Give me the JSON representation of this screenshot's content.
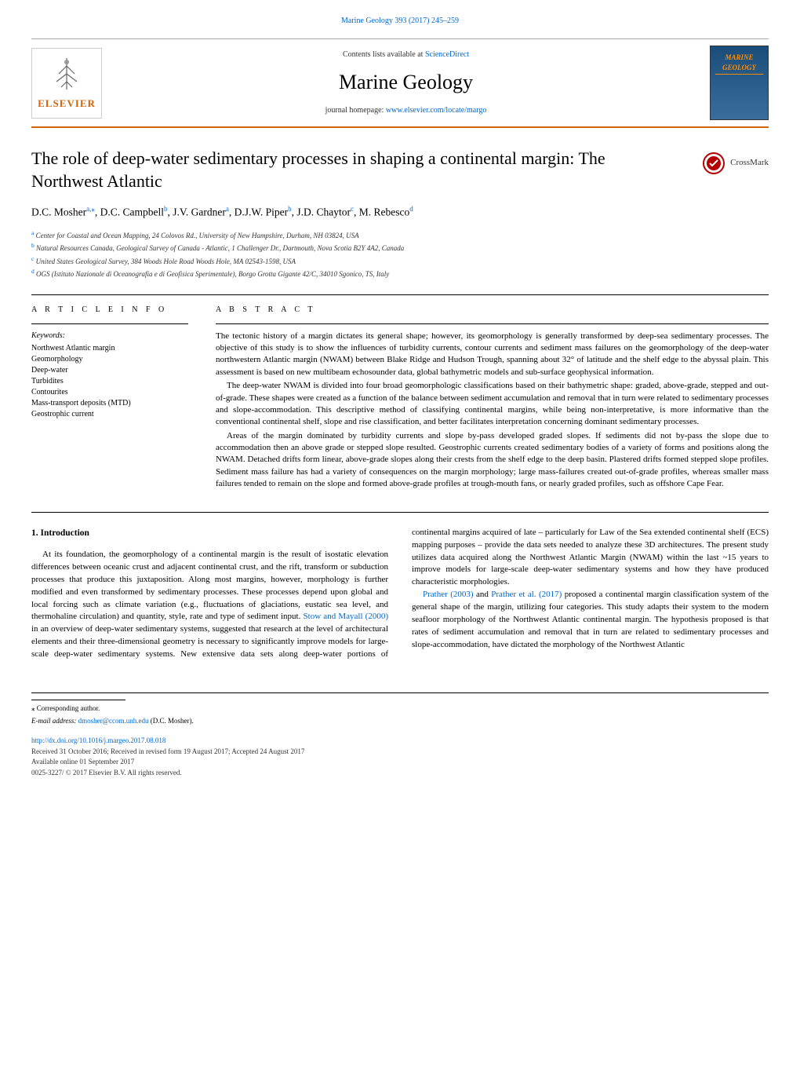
{
  "header": {
    "citation": "Marine Geology 393 (2017) 245–259",
    "contents_text": "Contents lists available at ",
    "contents_link": "ScienceDirect",
    "journal_name": "Marine Geology",
    "homepage_text": "journal homepage: ",
    "homepage_link": "www.elsevier.com/locate/margo",
    "publisher": "ELSEVIER",
    "cover_text": "MARINE GEOLOGY"
  },
  "article": {
    "title": "The role of deep-water sedimentary processes in shaping a continental margin: The Northwest Atlantic",
    "crossmark": "CrossMark",
    "authors_html": "D.C. Mosher",
    "authors": [
      {
        "name": "D.C. Mosher",
        "affil": "a,⁎"
      },
      {
        "name": "D.C. Campbell",
        "affil": "b"
      },
      {
        "name": "J.V. Gardner",
        "affil": "a"
      },
      {
        "name": "D.J.W. Piper",
        "affil": "b"
      },
      {
        "name": "J.D. Chaytor",
        "affil": "c"
      },
      {
        "name": "M. Rebesco",
        "affil": "d"
      }
    ],
    "affiliations": [
      {
        "sup": "a",
        "text": "Center for Coastal and Ocean Mapping, 24 Colovos Rd., University of New Hampshire, Durham, NH 03824, USA"
      },
      {
        "sup": "b",
        "text": "Natural Resources Canada, Geological Survey of Canada - Atlantic, 1 Challenger Dr., Dartmouth, Nova Scotia B2Y 4A2, Canada"
      },
      {
        "sup": "c",
        "text": "United States Geological Survey, 384 Woods Hole Road Woods Hole, MA 02543-1598, USA"
      },
      {
        "sup": "d",
        "text": "OGS (Istituto Nazionale di Oceanografia e di Geofisica Sperimentale), Borgo Grotta Gigante 42/C, 34010 Sgonico, TS, Italy"
      }
    ]
  },
  "info": {
    "heading": "A R T I C L E  I N F O",
    "keywords_label": "Keywords:",
    "keywords": [
      "Northwest Atlantic margin",
      "Geomorphology",
      "Deep-water",
      "Turbidites",
      "Contourites",
      "Mass-transport deposits (MTD)",
      "Geostrophic current"
    ]
  },
  "abstract": {
    "heading": "A B S T R A C T",
    "p1": "The tectonic history of a margin dictates its general shape; however, its geomorphology is generally transformed by deep-sea sedimentary processes. The objective of this study is to show the influences of turbidity currents, contour currents and sediment mass failures on the geomorphology of the deep-water northwestern Atlantic margin (NWAM) between Blake Ridge and Hudson Trough, spanning about 32° of latitude and the shelf edge to the abyssal plain. This assessment is based on new multibeam echosounder data, global bathymetric models and sub-surface geophysical information.",
    "p2": "The deep-water NWAM is divided into four broad geomorphologic classifications based on their bathymetric shape: graded, above-grade, stepped and out-of-grade. These shapes were created as a function of the balance between sediment accumulation and removal that in turn were related to sedimentary processes and slope-accommodation. This descriptive method of classifying continental margins, while being non-interpretative, is more informative than the conventional continental shelf, slope and rise classification, and better facilitates interpretation concerning dominant sedimentary processes.",
    "p3": "Areas of the margin dominated by turbidity currents and slope by-pass developed graded slopes. If sediments did not by-pass the slope due to accommodation then an above grade or stepped slope resulted. Geostrophic currents created sedimentary bodies of a variety of forms and positions along the NWAM. Detached drifts form linear, above-grade slopes along their crests from the shelf edge to the deep basin. Plastered drifts formed stepped slope profiles. Sediment mass failure has had a variety of consequences on the margin morphology; large mass-failures created out-of-grade profiles, whereas smaller mass failures tended to remain on the slope and formed above-grade profiles at trough-mouth fans, or nearly graded profiles, such as offshore Cape Fear."
  },
  "body": {
    "heading": "1. Introduction",
    "p1_a": "At its foundation, the geomorphology of a continental margin is the result of isostatic elevation differences between oceanic crust and adjacent continental crust, and the rift, transform or subduction processes that produce this juxtaposition. Along most margins, however, morphology is further modified and even transformed by sedimentary processes. These processes depend upon global and local forcing such as climate variation (e.g., fluctuations of glaciations, eustatic sea level, and thermohaline circulation) and quantity, style, rate and type of sediment input. ",
    "cite1": "Stow and Mayall (2000)",
    "p1_b": " in an overview of deep-water sedimentary systems, suggested that research at the level of architectural elements and their three-dimensional geometry is necessary to significantly improve models for large-scale deep-water sedimentary ",
    "p2_a": "systems. New extensive data sets along deep-water portions of continental margins acquired of late – particularly for Law of the Sea extended continental shelf (ECS) mapping purposes – provide the data sets needed to analyze these 3D architectures. The present study utilizes data acquired along the Northwest Atlantic Margin (NWAM) within the last ~15 years to improve models for large-scale deep-water sedimentary systems and how they have produced characteristic morphologies.",
    "cite2": "Prather (2003)",
    "p3_a": " and ",
    "cite3": "Prather et al. (2017)",
    "p3_b": " proposed a continental margin classification system of the general shape of the margin, utilizing four categories. This study adapts their system to the modern seafloor morphology of the Northwest Atlantic continental margin. The hypothesis proposed is that rates of sediment accumulation and removal that in turn are related to sedimentary processes and slope-accommodation, have dictated the morphology of the Northwest Atlantic"
  },
  "footer": {
    "corresponding": "⁎ Corresponding author.",
    "email_label": "E-mail address: ",
    "email": "dmosher@ccom.unh.edu",
    "email_name": " (D.C. Mosher).",
    "doi": "http://dx.doi.org/10.1016/j.margeo.2017.08.018",
    "received": "Received 31 October 2016; Received in revised form 19 August 2017; Accepted 24 August 2017",
    "available": "Available online 01 September 2017",
    "copyright": "0025-3227/ © 2017 Elsevier B.V. All rights reserved."
  }
}
